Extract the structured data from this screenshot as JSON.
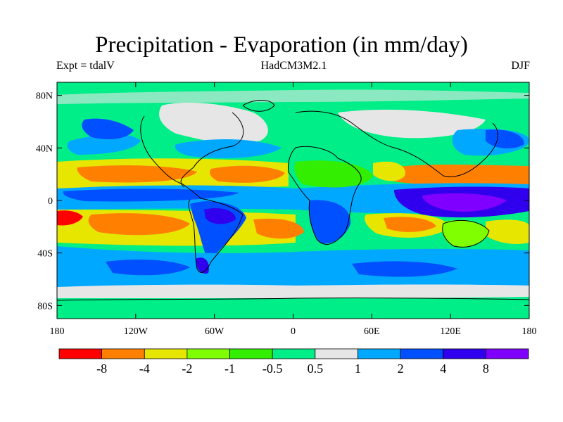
{
  "header": {
    "title": "Precipitation - Evaporation (in mm/day)",
    "expt": "Expt = tdalV",
    "model": "HadCM3M2.1",
    "season": "DJF"
  },
  "map": {
    "lon_range": [
      -180,
      180
    ],
    "lat_range": [
      -90,
      90
    ],
    "x_ticks": [
      {
        "value": -180,
        "label": "180"
      },
      {
        "value": -120,
        "label": "120W"
      },
      {
        "value": -60,
        "label": "60W"
      },
      {
        "value": 0,
        "label": "0"
      },
      {
        "value": 60,
        "label": "60E"
      },
      {
        "value": 120,
        "label": "120E"
      },
      {
        "value": 180,
        "label": "180"
      }
    ],
    "y_ticks": [
      {
        "value": 80,
        "label": "80N"
      },
      {
        "value": 40,
        "label": "40N"
      },
      {
        "value": 0,
        "label": "0"
      },
      {
        "value": -40,
        "label": "40S"
      },
      {
        "value": -80,
        "label": "80S"
      }
    ]
  },
  "colorbar": {
    "colors": [
      "#ff0000",
      "#ff8000",
      "#e6e600",
      "#80ff00",
      "#33ee00",
      "#00ee88",
      "#e6e6e6",
      "#00a8ff",
      "#0050ff",
      "#3000ee",
      "#8000ff"
    ],
    "labels": [
      "-8",
      "-4",
      "-2",
      "-1",
      "-0.5",
      "0.5",
      "1",
      "2",
      "4",
      "8"
    ]
  },
  "palette": {
    "drier": [
      "#ff0000",
      "#ff8000",
      "#e6e600",
      "#80ff00"
    ],
    "neutral": "#33ee00",
    "wetter": [
      "#00a8ff",
      "#0050ff",
      "#3000ee",
      "#8000ff"
    ],
    "ice": "#e6e6e6",
    "frame": "#000000",
    "coast": "#000000"
  }
}
